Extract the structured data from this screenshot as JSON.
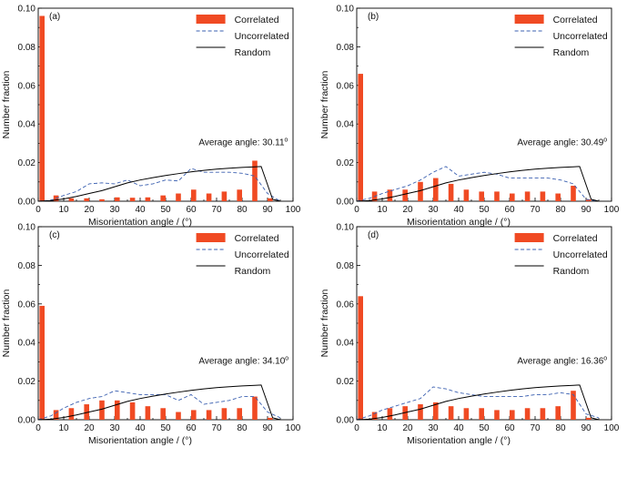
{
  "chart_data": [
    {
      "type": "bar",
      "panel_label": "(a)",
      "xlabel": "Misorientation angle / (°)",
      "ylabel": "Number fraction",
      "xlim": [
        0,
        100
      ],
      "ylim": [
        0,
        0.1
      ],
      "xticks": [
        "0",
        "10",
        "20",
        "30",
        "40",
        "50",
        "60",
        "70",
        "80",
        "90",
        "100"
      ],
      "yticks": [
        "0.00",
        "0.02",
        "0.04",
        "0.06",
        "0.08",
        "0.10"
      ],
      "legend": {
        "position": "top-right",
        "entries": [
          "Correlated",
          "Uncorrelated",
          "Random"
        ]
      },
      "annotation": {
        "text": "Average angle: 30.11",
        "superscript": "o"
      },
      "colors": {
        "correlated": "#f04a23",
        "uncorrelated": "#3a5fb0",
        "random": "#000000"
      },
      "correlated": {
        "x": [
          1.5,
          7,
          13,
          19,
          25,
          31,
          37,
          43,
          49,
          55,
          61,
          67,
          73,
          79,
          85,
          91
        ],
        "values": [
          0.096,
          0.003,
          0.0015,
          0.0015,
          0.001,
          0.002,
          0.0018,
          0.002,
          0.003,
          0.004,
          0.006,
          0.004,
          0.005,
          0.006,
          0.021,
          0.0015
        ]
      },
      "uncorrelated": {
        "x": [
          0,
          5,
          10,
          15,
          20,
          25,
          30,
          35,
          40,
          45,
          50,
          55,
          60,
          65,
          70,
          75,
          80,
          85,
          90,
          95
        ],
        "values": [
          0,
          0.0005,
          0.003,
          0.005,
          0.009,
          0.0095,
          0.009,
          0.011,
          0.008,
          0.009,
          0.011,
          0.0105,
          0.017,
          0.015,
          0.015,
          0.015,
          0.0145,
          0.013,
          0.004,
          0
        ]
      },
      "random": {
        "x": [
          0,
          5,
          10,
          15,
          20,
          25,
          30,
          35,
          40,
          45,
          50,
          55,
          60,
          65,
          70,
          75,
          80,
          85,
          87.5,
          92,
          95
        ],
        "values": [
          0,
          0.0003,
          0.0012,
          0.0025,
          0.004,
          0.0055,
          0.0075,
          0.0095,
          0.011,
          0.0122,
          0.0133,
          0.0143,
          0.0152,
          0.016,
          0.0166,
          0.0171,
          0.0175,
          0.0178,
          0.018,
          0.001,
          0
        ]
      }
    },
    {
      "type": "bar",
      "panel_label": "(b)",
      "xlabel": "Misorientation angle / (°)",
      "ylabel": "Number fraction",
      "xlim": [
        0,
        100
      ],
      "ylim": [
        0,
        0.1
      ],
      "xticks": [
        "0",
        "10",
        "20",
        "30",
        "40",
        "50",
        "60",
        "70",
        "80",
        "90",
        "100"
      ],
      "yticks": [
        "0.00",
        "0.02",
        "0.04",
        "0.06",
        "0.08",
        "0.10"
      ],
      "legend": {
        "position": "top-right",
        "entries": [
          "Correlated",
          "Uncorrelated",
          "Random"
        ]
      },
      "annotation": {
        "text": "Average angle: 30.49",
        "superscript": "o"
      },
      "colors": {
        "correlated": "#f04a23",
        "uncorrelated": "#3a5fb0",
        "random": "#000000"
      },
      "correlated": {
        "x": [
          1.5,
          7,
          13,
          19,
          25,
          31,
          37,
          43,
          49,
          55,
          61,
          67,
          73,
          79,
          85,
          91
        ],
        "values": [
          0.066,
          0.005,
          0.006,
          0.006,
          0.01,
          0.012,
          0.009,
          0.006,
          0.005,
          0.005,
          0.004,
          0.005,
          0.005,
          0.004,
          0.008,
          0.001
        ]
      },
      "uncorrelated": {
        "x": [
          0,
          5,
          10,
          15,
          20,
          25,
          30,
          35,
          40,
          45,
          50,
          55,
          60,
          65,
          70,
          75,
          80,
          85,
          90,
          95
        ],
        "values": [
          0,
          0.0015,
          0.004,
          0.006,
          0.008,
          0.011,
          0.015,
          0.018,
          0.013,
          0.014,
          0.015,
          0.014,
          0.012,
          0.012,
          0.012,
          0.012,
          0.011,
          0.009,
          0.001,
          0
        ]
      },
      "random": {
        "x": [
          0,
          5,
          10,
          15,
          20,
          25,
          30,
          35,
          40,
          45,
          50,
          55,
          60,
          65,
          70,
          75,
          80,
          85,
          87.5,
          92,
          95
        ],
        "values": [
          0,
          0.0003,
          0.0012,
          0.0025,
          0.004,
          0.0055,
          0.0075,
          0.0095,
          0.011,
          0.0122,
          0.0133,
          0.0143,
          0.0152,
          0.016,
          0.0166,
          0.0171,
          0.0175,
          0.0178,
          0.018,
          0.001,
          0
        ]
      }
    },
    {
      "type": "bar",
      "panel_label": "(c)",
      "xlabel": "Misorientation angle / (°)",
      "ylabel": "Number fraction",
      "xlim": [
        0,
        100
      ],
      "ylim": [
        0,
        0.1
      ],
      "xticks": [
        "0",
        "10",
        "20",
        "30",
        "40",
        "50",
        "60",
        "70",
        "80",
        "90",
        "100"
      ],
      "yticks": [
        "0.00",
        "0.02",
        "0.04",
        "0.06",
        "0.08",
        "0.10"
      ],
      "legend": {
        "position": "top-right",
        "entries": [
          "Correlated",
          "Uncorrelated",
          "Random"
        ]
      },
      "annotation": {
        "text": "Average angle: 34.10",
        "superscript": "o"
      },
      "colors": {
        "correlated": "#f04a23",
        "uncorrelated": "#3a5fb0",
        "random": "#000000"
      },
      "correlated": {
        "x": [
          1.5,
          7,
          13,
          19,
          25,
          31,
          37,
          43,
          49,
          55,
          61,
          67,
          73,
          79,
          85,
          91
        ],
        "values": [
          0.059,
          0.005,
          0.006,
          0.008,
          0.01,
          0.01,
          0.009,
          0.007,
          0.006,
          0.004,
          0.005,
          0.005,
          0.006,
          0.006,
          0.012,
          0.001
        ]
      },
      "uncorrelated": {
        "x": [
          0,
          5,
          10,
          15,
          20,
          25,
          30,
          35,
          40,
          45,
          50,
          55,
          60,
          65,
          70,
          75,
          80,
          85,
          90,
          95
        ],
        "values": [
          0,
          0.002,
          0.006,
          0.009,
          0.011,
          0.012,
          0.015,
          0.014,
          0.013,
          0.013,
          0.013,
          0.01,
          0.013,
          0.008,
          0.009,
          0.01,
          0.012,
          0.012,
          0.004,
          0.001
        ]
      },
      "random": {
        "x": [
          0,
          5,
          10,
          15,
          20,
          25,
          30,
          35,
          40,
          45,
          50,
          55,
          60,
          65,
          70,
          75,
          80,
          85,
          87.5,
          92,
          95
        ],
        "values": [
          0,
          0.0003,
          0.0012,
          0.0025,
          0.004,
          0.0055,
          0.0075,
          0.0095,
          0.011,
          0.0122,
          0.0133,
          0.0143,
          0.0152,
          0.016,
          0.0166,
          0.0171,
          0.0175,
          0.0178,
          0.018,
          0.001,
          0
        ]
      }
    },
    {
      "type": "bar",
      "panel_label": "(d)",
      "xlabel": "Misorientation angle / (°)",
      "ylabel": "Number fraction",
      "xlim": [
        0,
        100
      ],
      "ylim": [
        0,
        0.1
      ],
      "xticks": [
        "0",
        "10",
        "20",
        "30",
        "40",
        "50",
        "60",
        "70",
        "80",
        "90",
        "100"
      ],
      "yticks": [
        "0.00",
        "0.02",
        "0.04",
        "0.06",
        "0.08",
        "0.10"
      ],
      "legend": {
        "position": "top-right",
        "entries": [
          "Correlated",
          "Uncorrelated",
          "Random"
        ]
      },
      "annotation": {
        "text": "Average angle: 16.36",
        "superscript": "o"
      },
      "colors": {
        "correlated": "#f04a23",
        "uncorrelated": "#3a5fb0",
        "random": "#000000"
      },
      "correlated": {
        "x": [
          1.5,
          7,
          13,
          19,
          25,
          31,
          37,
          43,
          49,
          55,
          61,
          67,
          73,
          79,
          85,
          91
        ],
        "values": [
          0.064,
          0.004,
          0.006,
          0.007,
          0.008,
          0.009,
          0.007,
          0.006,
          0.006,
          0.005,
          0.005,
          0.006,
          0.006,
          0.007,
          0.015,
          0.001
        ]
      },
      "uncorrelated": {
        "x": [
          0,
          5,
          10,
          15,
          20,
          25,
          30,
          35,
          40,
          45,
          50,
          55,
          60,
          65,
          70,
          75,
          80,
          85,
          90,
          95
        ],
        "values": [
          0,
          0.002,
          0.005,
          0.007,
          0.009,
          0.011,
          0.017,
          0.016,
          0.014,
          0.013,
          0.012,
          0.012,
          0.012,
          0.012,
          0.013,
          0.013,
          0.014,
          0.013,
          0.003,
          0.001
        ]
      },
      "random": {
        "x": [
          0,
          5,
          10,
          15,
          20,
          25,
          30,
          35,
          40,
          45,
          50,
          55,
          60,
          65,
          70,
          75,
          80,
          85,
          87.5,
          92,
          95
        ],
        "values": [
          0,
          0.0003,
          0.0012,
          0.0025,
          0.004,
          0.0055,
          0.0075,
          0.0095,
          0.011,
          0.0122,
          0.0133,
          0.0143,
          0.0152,
          0.016,
          0.0166,
          0.0171,
          0.0175,
          0.0178,
          0.018,
          0.001,
          0
        ]
      }
    }
  ]
}
